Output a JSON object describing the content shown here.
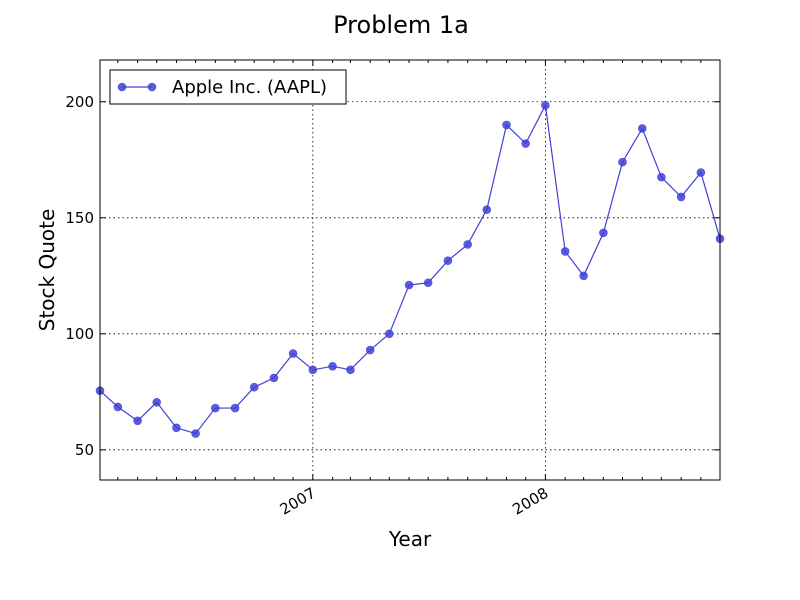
{
  "chart_data": {
    "type": "line",
    "title": "Problem 1a",
    "xlabel": "Year",
    "ylabel": "Stock Quote",
    "x_type": "date",
    "xlim": [
      "2006-02-01",
      "2008-10-01"
    ],
    "ylim": [
      37,
      218
    ],
    "yticks": [
      50,
      100,
      150,
      200
    ],
    "xticks": [
      {
        "date": "2007-01-01",
        "label": "2007"
      },
      {
        "date": "2008-01-01",
        "label": "2008"
      }
    ],
    "grid": true,
    "legend": {
      "position": "upper-left"
    },
    "series": [
      {
        "name": "Apple Inc. (AAPL)",
        "color": "#4040d8",
        "marker": "circle",
        "points": [
          {
            "x": "2006-02-01",
            "y": 75.5
          },
          {
            "x": "2006-03-01",
            "y": 68.5
          },
          {
            "x": "2006-04-01",
            "y": 62.5
          },
          {
            "x": "2006-05-01",
            "y": 70.5
          },
          {
            "x": "2006-06-01",
            "y": 59.5
          },
          {
            "x": "2006-07-01",
            "y": 57.0
          },
          {
            "x": "2006-08-01",
            "y": 68.0
          },
          {
            "x": "2006-09-01",
            "y": 68.0
          },
          {
            "x": "2006-10-01",
            "y": 77.0
          },
          {
            "x": "2006-11-01",
            "y": 81.0
          },
          {
            "x": "2006-12-01",
            "y": 91.5
          },
          {
            "x": "2007-01-01",
            "y": 84.5
          },
          {
            "x": "2007-02-01",
            "y": 86.0
          },
          {
            "x": "2007-03-01",
            "y": 84.5
          },
          {
            "x": "2007-04-01",
            "y": 93.0
          },
          {
            "x": "2007-05-01",
            "y": 100.0
          },
          {
            "x": "2007-06-01",
            "y": 121.0
          },
          {
            "x": "2007-07-01",
            "y": 122.0
          },
          {
            "x": "2007-08-01",
            "y": 131.5
          },
          {
            "x": "2007-09-01",
            "y": 138.5
          },
          {
            "x": "2007-10-01",
            "y": 153.5
          },
          {
            "x": "2007-11-01",
            "y": 190.0
          },
          {
            "x": "2007-12-01",
            "y": 182.0
          },
          {
            "x": "2008-01-01",
            "y": 198.5
          },
          {
            "x": "2008-02-01",
            "y": 135.5
          },
          {
            "x": "2008-03-01",
            "y": 125.0
          },
          {
            "x": "2008-04-01",
            "y": 143.5
          },
          {
            "x": "2008-05-01",
            "y": 174.0
          },
          {
            "x": "2008-06-01",
            "y": 188.5
          },
          {
            "x": "2008-07-01",
            "y": 167.5
          },
          {
            "x": "2008-08-01",
            "y": 159.0
          },
          {
            "x": "2008-09-01",
            "y": 169.5
          },
          {
            "x": "2008-10-01",
            "y": 141.0
          }
        ]
      }
    ]
  }
}
